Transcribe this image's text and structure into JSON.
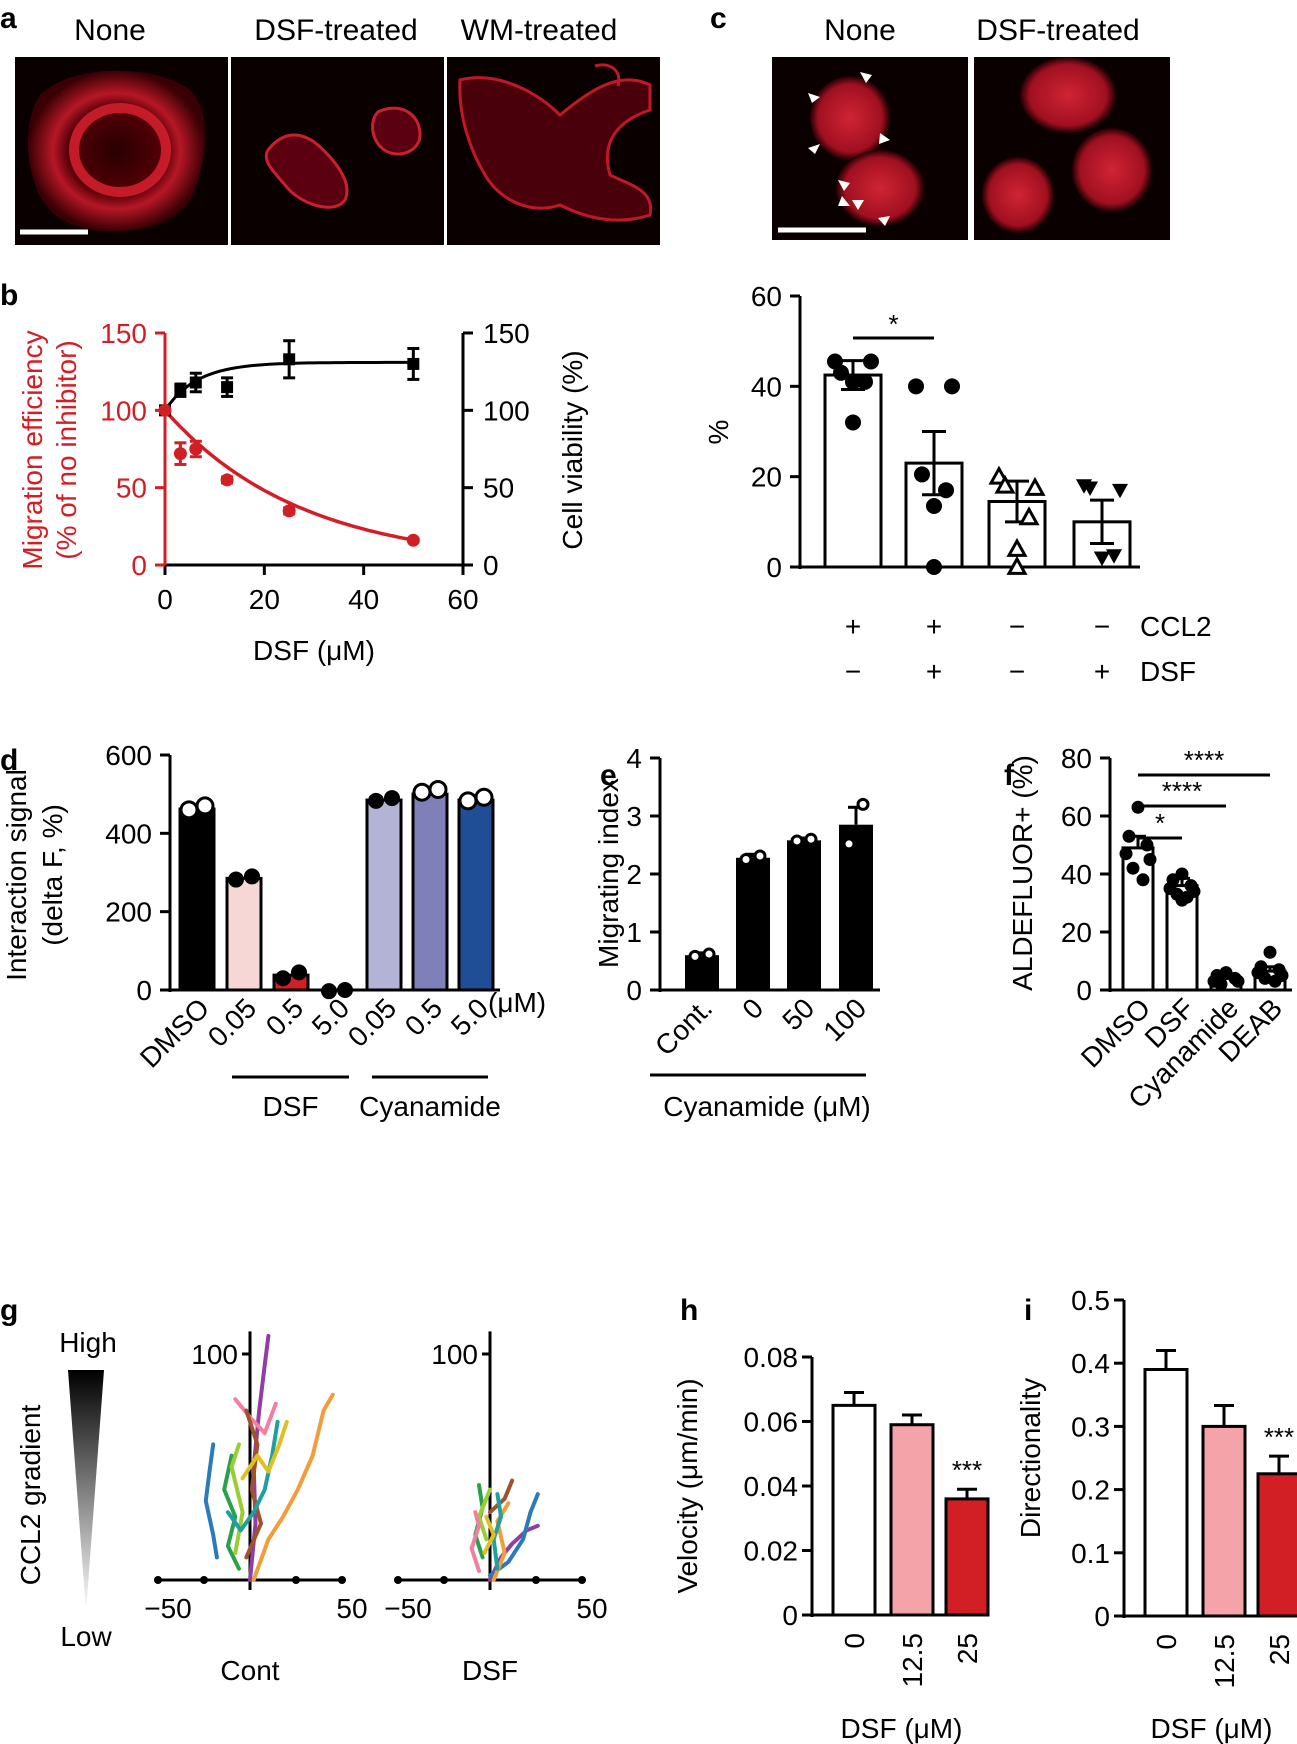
{
  "panels": {
    "a": {
      "letter": "a",
      "labels": [
        "None",
        "DSF-treated",
        "WM-treated"
      ]
    },
    "c": {
      "letter": "c",
      "labels": [
        "None",
        "DSF-treated"
      ]
    }
  },
  "colors": {
    "red": "#d21f26",
    "black": "#000000",
    "pink": "#f4a3a8",
    "light_pink": "#f7d6d6",
    "lav1": "#b3b3d6",
    "lav2": "#8080b8",
    "navy": "#1f4e96",
    "micro_bg": "#0a0000",
    "micro_red": "#b3142a"
  },
  "chart_data": [
    {
      "panel": "b",
      "letter": "b",
      "type": "scatter",
      "xlabel": "DSF (μM)",
      "ylabel_left": [
        "Migration efficiency",
        "(% of no inhibitor)"
      ],
      "ylabel_right": "Cell viability (%)",
      "xlim": [
        0,
        60
      ],
      "ylim_left": [
        0,
        150
      ],
      "ylim_right": [
        0,
        150
      ],
      "xticks": [
        0,
        20,
        40,
        60
      ],
      "yticks_left": [
        0,
        50,
        100,
        150
      ],
      "yticks_right": [
        0,
        50,
        100,
        150
      ],
      "series": [
        {
          "name": "Migration efficiency",
          "axis": "left",
          "color": "#d21f26",
          "x": [
            0,
            3.1,
            6.2,
            12.5,
            25,
            50
          ],
          "y": [
            100,
            72,
            75,
            55,
            35,
            16
          ],
          "err": [
            0,
            7,
            5,
            2,
            2,
            1
          ],
          "fit": "exp-decay"
        },
        {
          "name": "Cell viability",
          "axis": "right",
          "color": "#000000",
          "x": [
            0,
            3.1,
            6.2,
            12.5,
            25,
            50
          ],
          "y": [
            100,
            113,
            118,
            115,
            133,
            130
          ],
          "err": [
            0,
            4,
            6,
            6,
            12,
            10
          ],
          "fit": "saturation"
        }
      ]
    },
    {
      "panel": "c2",
      "type": "bar",
      "ylabel": "%",
      "ylim": [
        0,
        60
      ],
      "yticks": [
        0,
        20,
        40,
        60
      ],
      "row_labels": [
        "CCL2",
        "DSF"
      ],
      "conditions": [
        {
          "ccl2": "+",
          "dsf": "−",
          "mean": 42.5,
          "sem": 3.2,
          "points": [
            45.5,
            45.5,
            43,
            41,
            41,
            32
          ],
          "marker": "circle-filled"
        },
        {
          "ccl2": "+",
          "dsf": "+",
          "mean": 23,
          "sem": 7,
          "points": [
            40,
            40,
            20.5,
            17,
            13.5,
            0
          ],
          "marker": "circle-filled"
        },
        {
          "ccl2": "−",
          "dsf": "−",
          "mean": 14.5,
          "sem": 4.5,
          "points": [
            20,
            17.5,
            18,
            11,
            4,
            0
          ],
          "marker": "triangle-open"
        },
        {
          "ccl2": "−",
          "dsf": "+",
          "mean": 10,
          "sem": 4.8,
          "points": [
            18,
            17,
            17.5,
            2.5,
            2,
            2
          ],
          "marker": "triangle-down-filled"
        }
      ],
      "significance": {
        "from": 0,
        "to": 1,
        "label": "*"
      }
    },
    {
      "panel": "d",
      "letter": "d",
      "type": "bar",
      "ylabel": [
        "Interaction signal",
        "(delta F, %)"
      ],
      "ylim": [
        0,
        600
      ],
      "yticks": [
        0,
        200,
        400,
        600
      ],
      "unit_label": "(μM)",
      "categories": [
        "DMSO",
        "0.05",
        "0.5",
        "5.0",
        "0.05",
        "0.5",
        "5.0"
      ],
      "values": [
        462,
        285,
        38,
        0,
        485,
        500,
        485
      ],
      "points": [
        [
          460,
          470
        ],
        [
          282,
          290
        ],
        [
          30,
          45
        ],
        [
          -3,
          0
        ],
        [
          483,
          490
        ],
        [
          505,
          512
        ],
        [
          483,
          492
        ]
      ],
      "groups": [
        {
          "label": "DSF",
          "from": 1,
          "to": 3
        },
        {
          "label": "Cyanamide",
          "from": 4,
          "to": 6
        }
      ]
    },
    {
      "panel": "e",
      "letter": "e",
      "type": "bar",
      "ylabel": "Migrating index",
      "ylim": [
        0,
        4
      ],
      "yticks": [
        0,
        1,
        2,
        3,
        4
      ],
      "categories": [
        "Cont.",
        "0",
        "50",
        "100"
      ],
      "values": [
        0.6,
        2.28,
        2.58,
        2.85
      ],
      "errors": [
        0.04,
        0.06,
        0.04,
        0.3
      ],
      "points": [
        [
          0.58,
          0.62
        ],
        [
          2.25,
          2.31
        ],
        [
          2.57,
          2.6
        ],
        [
          2.52,
          3.2
        ]
      ],
      "group_label": "Cyanamide (μM)"
    },
    {
      "panel": "f",
      "letter": "f",
      "type": "bar",
      "ylabel": "ALDEFLUOR+ (%)",
      "ylim": [
        0,
        80
      ],
      "yticks": [
        0,
        20,
        40,
        60,
        80
      ],
      "categories": [
        "DMSO",
        "DSF",
        "Cyanamide",
        "DEAB"
      ],
      "values": [
        49,
        36,
        4,
        6.5
      ],
      "errors": [
        4,
        2.5,
        1,
        1.5
      ],
      "points": [
        [
          63,
          53,
          50,
          47,
          45,
          42,
          38
        ],
        [
          40,
          38,
          36,
          35,
          34,
          33,
          32,
          31
        ],
        [
          6,
          5,
          4,
          3,
          3,
          2
        ],
        [
          13,
          8,
          7,
          6,
          5,
          4,
          3
        ]
      ],
      "significance": [
        {
          "from": 0,
          "to": 1,
          "label": "*"
        },
        {
          "from": 0,
          "to": 2,
          "label": "****"
        },
        {
          "from": 0,
          "to": 3,
          "label": "****"
        }
      ]
    },
    {
      "panel": "g",
      "letter": "g",
      "type": "line",
      "gradient_label": "CCL2 gradient",
      "gradient_high": "High",
      "gradient_low": "Low",
      "xlim": [
        -50,
        50
      ],
      "ylim": [
        -10,
        110
      ],
      "xticks": [
        -50,
        50
      ],
      "ytick_labels": [
        "100"
      ],
      "track_colors": [
        "#8e3fa0",
        "#2b7bba",
        "#29a04a",
        "#9acd32",
        "#f39c3a",
        "#f080a0",
        "#a0522d",
        "#1fa0a0",
        "#e0c020"
      ],
      "plots": [
        {
          "label": "Cont",
          "tracks": [
            [
              [
                0,
                0
              ],
              [
                3,
                25
              ],
              [
                2,
                50
              ],
              [
                5,
                75
              ],
              [
                8,
                95
              ],
              [
                10,
                108
              ]
            ],
            [
              [
                -20,
                60
              ],
              [
                -22,
                48
              ],
              [
                -24,
                35
              ],
              [
                -20,
                20
              ],
              [
                -18,
                10
              ]
            ],
            [
              [
                -10,
                55
              ],
              [
                -14,
                40
              ],
              [
                -8,
                28
              ],
              [
                -12,
                15
              ],
              [
                -6,
                5
              ]
            ],
            [
              [
                -6,
                60
              ],
              [
                -10,
                50
              ],
              [
                -4,
                30
              ],
              [
                -8,
                12
              ]
            ],
            [
              [
                2,
                0
              ],
              [
                10,
                18
              ],
              [
                18,
                28
              ],
              [
                26,
                40
              ],
              [
                34,
                55
              ],
              [
                40,
                75
              ],
              [
                45,
                82
              ]
            ],
            [
              [
                -8,
                80
              ],
              [
                0,
                72
              ],
              [
                8,
                65
              ],
              [
                14,
                78
              ]
            ],
            [
              [
                -2,
                75
              ],
              [
                4,
                60
              ],
              [
                1,
                40
              ],
              [
                6,
                25
              ],
              [
                -2,
                10
              ]
            ],
            [
              [
                -12,
                30
              ],
              [
                -5,
                22
              ],
              [
                2,
                30
              ],
              [
                8,
                40
              ],
              [
                12,
                55
              ],
              [
                15,
                70
              ]
            ],
            [
              [
                -4,
                45
              ],
              [
                4,
                55
              ],
              [
                10,
                48
              ],
              [
                16,
                60
              ],
              [
                20,
                70
              ]
            ]
          ]
        },
        {
          "label": "DSF",
          "tracks": [
            [
              [
                0,
                0
              ],
              [
                6,
                10
              ],
              [
                12,
                16
              ],
              [
                20,
                22
              ],
              [
                26,
                24
              ]
            ],
            [
              [
                0,
                2
              ],
              [
                10,
                8
              ],
              [
                18,
                18
              ],
              [
                22,
                30
              ],
              [
                26,
                38
              ]
            ],
            [
              [
                -4,
                10
              ],
              [
                -8,
                20
              ],
              [
                -4,
                32
              ],
              [
                -6,
                42
              ]
            ],
            [
              [
                -2,
                18
              ],
              [
                -6,
                28
              ],
              [
                -2,
                36
              ],
              [
                0,
                40
              ]
            ],
            [
              [
                2,
                0
              ],
              [
                8,
                12
              ],
              [
                4,
                26
              ],
              [
                10,
                34
              ]
            ],
            [
              [
                -6,
                4
              ],
              [
                -10,
                14
              ],
              [
                -6,
                24
              ],
              [
                -8,
                30
              ]
            ],
            [
              [
                0,
                30
              ],
              [
                8,
                36
              ],
              [
                12,
                44
              ]
            ],
            [
              [
                4,
                5
              ],
              [
                2,
                18
              ],
              [
                6,
                28
              ],
              [
                4,
                38
              ]
            ],
            [
              [
                -3,
                12
              ],
              [
                2,
                20
              ],
              [
                -2,
                28
              ]
            ]
          ]
        }
      ]
    },
    {
      "panel": "h",
      "letter": "h",
      "type": "bar",
      "ylabel": "Velocity (μm/min)",
      "xlabel": "DSF (μM)",
      "ylim": [
        0,
        0.08
      ],
      "yticks": [
        "0",
        "0.02",
        "0.04",
        "0.06",
        "0.08"
      ],
      "categories": [
        "0",
        "12.5",
        "25"
      ],
      "values": [
        0.065,
        0.059,
        0.036
      ],
      "errors": [
        0.004,
        0.003,
        0.003
      ],
      "colors": [
        "#ffffff",
        "#f4a3a8",
        "#d21f26"
      ],
      "significance": "***"
    },
    {
      "panel": "i",
      "letter": "i",
      "type": "bar",
      "ylabel": "Directionality",
      "xlabel": "DSF (μM)",
      "ylim": [
        0,
        0.5
      ],
      "yticks": [
        "0",
        "0.1",
        "0.2",
        "0.3",
        "0.4",
        "0.5"
      ],
      "categories": [
        "0",
        "12.5",
        "25"
      ],
      "values": [
        0.39,
        0.3,
        0.225
      ],
      "errors": [
        0.03,
        0.033,
        0.028
      ],
      "colors": [
        "#ffffff",
        "#f4a3a8",
        "#d21f26"
      ],
      "significance": "***"
    }
  ]
}
